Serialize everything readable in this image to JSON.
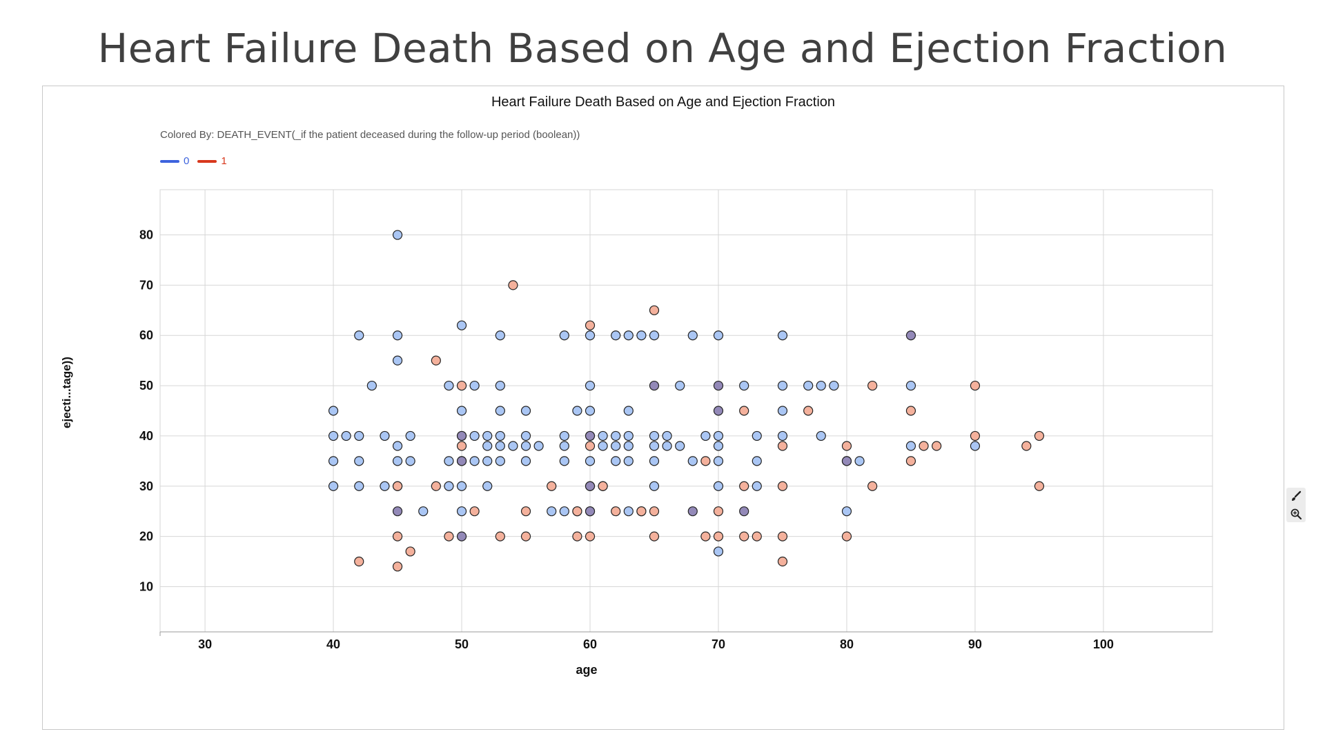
{
  "slide_title": "Heart Failure Death Based on Age and Ejection Fraction",
  "colors": {
    "class0": "#3d63dd",
    "class1": "#d8381d",
    "point_light0": "#aac6f4",
    "point_light1": "#f4b19c",
    "point_mid": "#9389b8"
  },
  "chart_data": {
    "type": "scatter",
    "title": "Heart Failure Death Based on Age and Ejection Fraction",
    "colored_by": "Colored By: DEATH_EVENT(_if the patient deceased during the follow-up period (boolean))",
    "xlabel": "age",
    "ylabel": "ejecti...tage))",
    "xlim": [
      26.5,
      108.5
    ],
    "ylim": [
      1,
      89
    ],
    "xticks": [
      30,
      40,
      50,
      60,
      70,
      80,
      90,
      100
    ],
    "yticks": [
      10,
      20,
      30,
      40,
      50,
      60,
      70,
      80
    ],
    "grid": true,
    "legend_position": "top-left",
    "series": [
      {
        "name": "0",
        "points": [
          [
            40,
            45
          ],
          [
            40,
            40
          ],
          [
            40,
            35
          ],
          [
            40,
            30
          ],
          [
            41,
            40
          ],
          [
            42,
            60
          ],
          [
            42,
            40
          ],
          [
            42,
            35
          ],
          [
            42,
            30
          ],
          [
            43,
            50
          ],
          [
            44,
            40
          ],
          [
            44,
            30
          ],
          [
            45,
            80
          ],
          [
            45,
            60
          ],
          [
            45,
            55
          ],
          [
            45,
            38
          ],
          [
            45,
            35
          ],
          [
            45,
            30
          ],
          [
            46,
            40
          ],
          [
            46,
            35
          ],
          [
            47,
            25
          ],
          [
            49,
            50
          ],
          [
            49,
            35
          ],
          [
            49,
            30
          ],
          [
            50,
            62
          ],
          [
            50,
            45
          ],
          [
            50,
            40
          ],
          [
            50,
            35
          ],
          [
            50,
            30
          ],
          [
            50,
            25
          ],
          [
            51,
            50
          ],
          [
            51,
            40
          ],
          [
            51,
            35
          ],
          [
            52,
            40
          ],
          [
            52,
            38
          ],
          [
            52,
            35
          ],
          [
            52,
            30
          ],
          [
            53,
            60
          ],
          [
            53,
            50
          ],
          [
            53,
            45
          ],
          [
            53,
            40
          ],
          [
            53,
            38
          ],
          [
            53,
            35
          ],
          [
            54,
            38
          ],
          [
            55,
            45
          ],
          [
            55,
            40
          ],
          [
            55,
            38
          ],
          [
            55,
            35
          ],
          [
            56,
            38
          ],
          [
            57,
            25
          ],
          [
            58,
            60
          ],
          [
            58,
            40
          ],
          [
            58,
            38
          ],
          [
            58,
            35
          ],
          [
            58,
            25
          ],
          [
            59,
            45
          ],
          [
            59,
            25
          ],
          [
            60,
            60
          ],
          [
            60,
            50
          ],
          [
            60,
            45
          ],
          [
            60,
            40
          ],
          [
            60,
            35
          ],
          [
            60,
            30
          ],
          [
            60,
            25
          ],
          [
            61,
            40
          ],
          [
            61,
            38
          ],
          [
            61,
            30
          ],
          [
            62,
            60
          ],
          [
            62,
            40
          ],
          [
            62,
            38
          ],
          [
            62,
            35
          ],
          [
            63,
            60
          ],
          [
            63,
            45
          ],
          [
            63,
            40
          ],
          [
            63,
            38
          ],
          [
            63,
            35
          ],
          [
            63,
            25
          ],
          [
            64,
            60
          ],
          [
            64,
            25
          ],
          [
            65,
            60
          ],
          [
            65,
            40
          ],
          [
            65,
            38
          ],
          [
            65,
            35
          ],
          [
            65,
            30
          ],
          [
            66,
            40
          ],
          [
            66,
            38
          ],
          [
            67,
            50
          ],
          [
            67,
            38
          ],
          [
            68,
            60
          ],
          [
            68,
            35
          ],
          [
            69,
            40
          ],
          [
            70,
            60
          ],
          [
            70,
            40
          ],
          [
            70,
            38
          ],
          [
            70,
            35
          ],
          [
            70,
            30
          ],
          [
            70,
            17
          ],
          [
            72,
            50
          ],
          [
            73,
            40
          ],
          [
            73,
            35
          ],
          [
            73,
            30
          ],
          [
            75,
            60
          ],
          [
            75,
            50
          ],
          [
            75,
            45
          ],
          [
            75,
            40
          ],
          [
            77,
            50
          ],
          [
            78,
            50
          ],
          [
            78,
            40
          ],
          [
            79,
            50
          ],
          [
            80,
            35
          ],
          [
            80,
            25
          ],
          [
            81,
            35
          ],
          [
            85,
            50
          ],
          [
            85,
            38
          ],
          [
            90,
            38
          ]
        ]
      },
      {
        "name": "1",
        "points": [
          [
            42,
            15
          ],
          [
            45,
            30
          ],
          [
            45,
            20
          ],
          [
            45,
            14
          ],
          [
            46,
            17
          ],
          [
            48,
            55
          ],
          [
            48,
            30
          ],
          [
            49,
            20
          ],
          [
            50,
            50
          ],
          [
            50,
            38
          ],
          [
            51,
            25
          ],
          [
            53,
            20
          ],
          [
            54,
            70
          ],
          [
            55,
            25
          ],
          [
            55,
            20
          ],
          [
            57,
            30
          ],
          [
            59,
            25
          ],
          [
            59,
            20
          ],
          [
            60,
            62
          ],
          [
            60,
            38
          ],
          [
            60,
            20
          ],
          [
            61,
            30
          ],
          [
            62,
            25
          ],
          [
            64,
            25
          ],
          [
            65,
            65
          ],
          [
            65,
            25
          ],
          [
            65,
            20
          ],
          [
            69,
            35
          ],
          [
            69,
            20
          ],
          [
            70,
            25
          ],
          [
            70,
            20
          ],
          [
            72,
            45
          ],
          [
            72,
            30
          ],
          [
            72,
            20
          ],
          [
            73,
            20
          ],
          [
            75,
            38
          ],
          [
            75,
            30
          ],
          [
            75,
            20
          ],
          [
            75,
            15
          ],
          [
            77,
            45
          ],
          [
            80,
            38
          ],
          [
            80,
            20
          ],
          [
            82,
            50
          ],
          [
            82,
            30
          ],
          [
            85,
            45
          ],
          [
            85,
            35
          ],
          [
            86,
            38
          ],
          [
            87,
            38
          ],
          [
            90,
            50
          ],
          [
            90,
            40
          ],
          [
            94,
            38
          ],
          [
            95,
            40
          ],
          [
            95,
            30
          ]
        ]
      }
    ],
    "mixed_points": [
      [
        45,
        25
      ],
      [
        50,
        40
      ],
      [
        50,
        35
      ],
      [
        50,
        20
      ],
      [
        60,
        40
      ],
      [
        60,
        30
      ],
      [
        60,
        25
      ],
      [
        65,
        50
      ],
      [
        68,
        25
      ],
      [
        70,
        50
      ],
      [
        70,
        45
      ],
      [
        72,
        25
      ],
      [
        80,
        35
      ],
      [
        85,
        60
      ]
    ]
  }
}
